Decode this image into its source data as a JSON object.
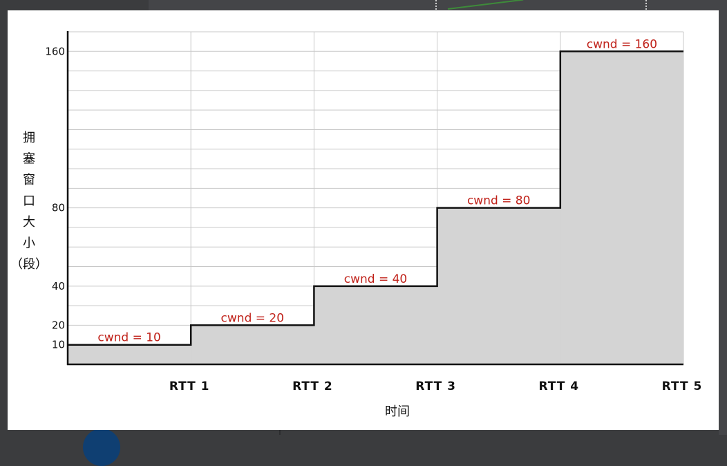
{
  "chart_data": {
    "type": "line",
    "step": true,
    "xlabel": "时间",
    "ylabel": "拥塞窗口大小（段）",
    "ylabel_lines": [
      "拥",
      "塞",
      "窗",
      "口",
      "大",
      "小",
      "（段）"
    ],
    "categories": [
      "RTT 1",
      "RTT 2",
      "RTT 3",
      "RTT 4",
      "RTT 5"
    ],
    "values": [
      10,
      20,
      40,
      80,
      160
    ],
    "annotations": [
      "cwnd = 10",
      "cwnd = 20",
      "cwnd = 40",
      "cwnd = 80",
      "cwnd = 160"
    ],
    "yticks": [
      10,
      20,
      40,
      80,
      160
    ],
    "ylim": [
      0,
      170
    ],
    "grid": true,
    "fill": "#d4d4d4",
    "line_color": "#111111",
    "annotation_color": "#c0221a"
  }
}
